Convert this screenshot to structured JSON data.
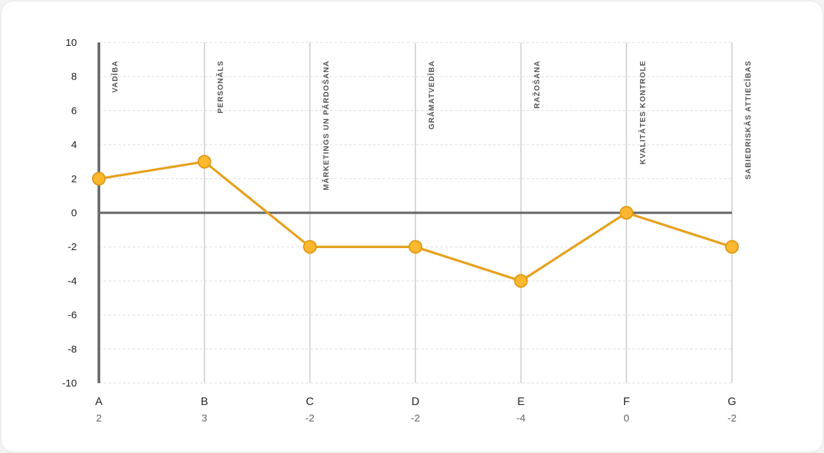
{
  "chart_data": {
    "type": "line",
    "categories": [
      "A",
      "B",
      "C",
      "D",
      "E",
      "F",
      "G"
    ],
    "category_names": [
      "VADĪBA",
      "PERSONĀLS",
      "MĀRKETINGS UN PĀRDOŠANA",
      "GRĀMATVEDĪBA",
      "RAŽOŠANA",
      "KVALITĀTES KONTROLE",
      "SABIEDRISKĀS ATTIECĪBAS"
    ],
    "values": [
      2,
      3,
      -2,
      -2,
      -4,
      0,
      -2
    ],
    "value_labels": [
      "2",
      "3",
      "-2",
      "-2",
      "-4",
      "0",
      "-2"
    ],
    "yticks": [
      "10",
      "8",
      "6",
      "4",
      "2",
      "0",
      "-2",
      "-4",
      "-6",
      "-8",
      "-10"
    ],
    "ylim": [
      -10,
      10
    ],
    "grid": true,
    "colors": {
      "line": "#e6a11e",
      "marker_fill": "#fbb82f",
      "marker_stroke": "#e19a15",
      "axis": "#6d6d6d",
      "grid": "#dcdcdc",
      "vertical_lines": "#c9c9c9"
    }
  }
}
